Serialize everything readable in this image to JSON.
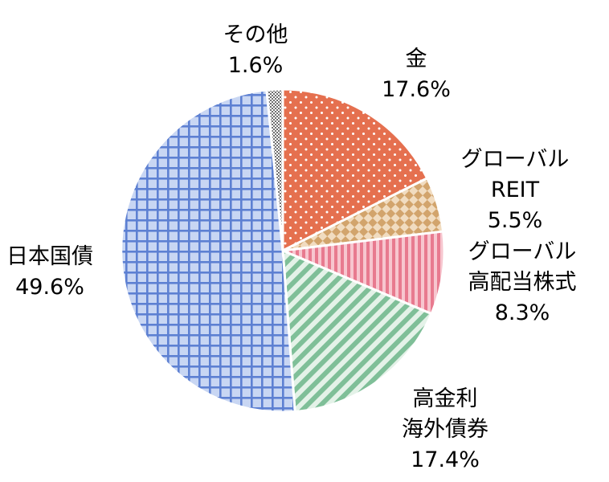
{
  "chart_data": {
    "type": "pie",
    "start_angle_deg": 0,
    "direction": "clockwise",
    "slices": [
      {
        "label_lines": [
          "金"
        ],
        "value": 17.6,
        "value_label": "17.6%",
        "color": "#e5704f",
        "pattern": "dots"
      },
      {
        "label_lines": [
          "グローバル",
          "REIT"
        ],
        "value": 5.5,
        "value_label": "5.5%",
        "color": "#d2a46c",
        "pattern": "checker"
      },
      {
        "label_lines": [
          "グローバル",
          "高配当株式"
        ],
        "value": 8.3,
        "value_label": "8.3%",
        "color": "#e87a8f",
        "pattern": "vertical-stripes"
      },
      {
        "label_lines": [
          "高金利",
          "海外債券"
        ],
        "value": 17.4,
        "value_label": "17.4%",
        "color": "#7fbf98",
        "pattern": "diagonal-stripes"
      },
      {
        "label_lines": [
          "日本国債"
        ],
        "value": 49.6,
        "value_label": "49.6%",
        "color": "#6f8fd6",
        "pattern": "grid"
      },
      {
        "label_lines": [
          "その他"
        ],
        "value": 1.6,
        "value_label": "1.6%",
        "color": "#808080",
        "pattern": "fine-checker"
      }
    ]
  }
}
